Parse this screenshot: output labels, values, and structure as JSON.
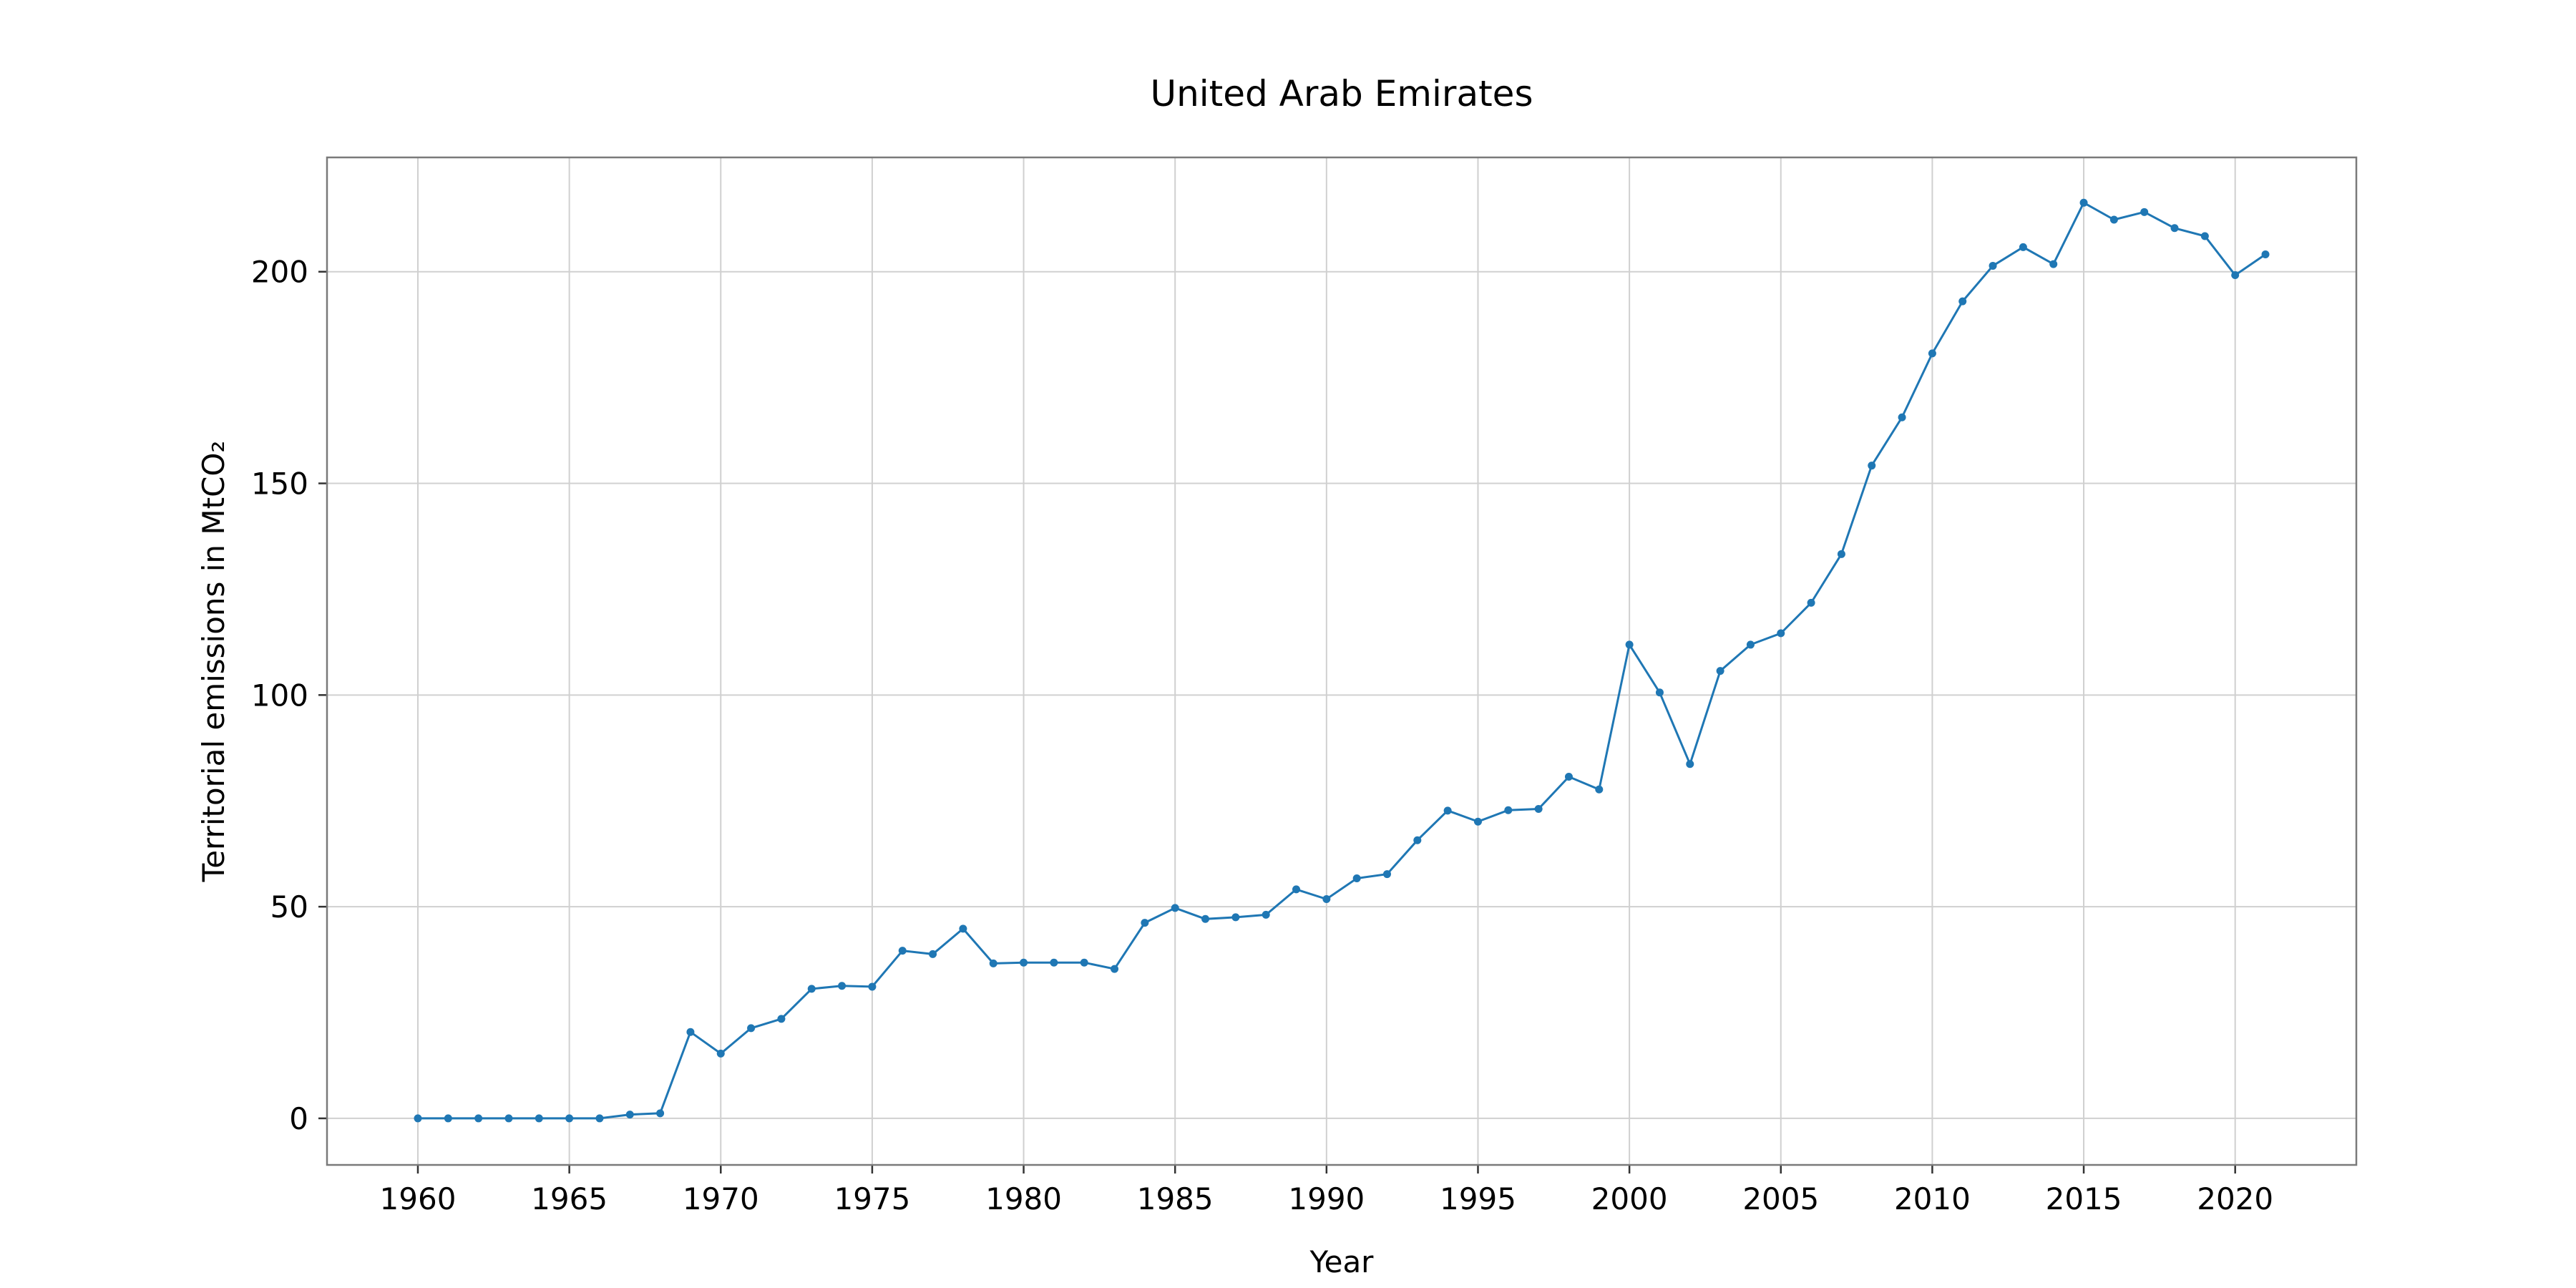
{
  "chart_data": {
    "type": "line",
    "title": "United Arab Emirates",
    "xlabel": "Year",
    "ylabel": "Territorial emissions in MtCO₂",
    "xlim": [
      1957,
      2024
    ],
    "ylim": [
      -11,
      227
    ],
    "xticks": [
      1960,
      1965,
      1970,
      1975,
      1980,
      1985,
      1990,
      1995,
      2000,
      2005,
      2010,
      2015,
      2020
    ],
    "yticks": [
      0,
      50,
      100,
      150,
      200
    ],
    "grid": true,
    "color": "#1f77b4",
    "x": [
      1960,
      1961,
      1962,
      1963,
      1964,
      1965,
      1966,
      1967,
      1968,
      1969,
      1970,
      1971,
      1972,
      1973,
      1974,
      1975,
      1976,
      1977,
      1978,
      1979,
      1980,
      1981,
      1982,
      1983,
      1984,
      1985,
      1986,
      1987,
      1988,
      1989,
      1990,
      1991,
      1992,
      1993,
      1994,
      1995,
      1996,
      1997,
      1998,
      1999,
      2000,
      2001,
      2002,
      2003,
      2004,
      2005,
      2006,
      2007,
      2008,
      2009,
      2010,
      2011,
      2012,
      2013,
      2014,
      2015,
      2016,
      2017,
      2018,
      2019,
      2020,
      2021
    ],
    "series": [
      {
        "values": [
          0.0,
          0.0,
          0.0,
          0.0,
          0.0,
          0.0,
          0.0,
          0.9,
          1.2,
          20.4,
          15.3,
          21.3,
          23.5,
          30.6,
          31.3,
          31.1,
          39.6,
          38.8,
          44.8,
          36.6,
          36.8,
          36.8,
          36.8,
          35.3,
          46.2,
          49.7,
          47.1,
          47.5,
          48.1,
          54.1,
          51.8,
          56.7,
          57.7,
          65.7,
          72.7,
          70.1,
          72.8,
          73.1,
          80.7,
          77.7,
          111.9,
          100.6,
          83.7,
          105.7,
          111.9,
          114.6,
          121.8,
          133.3,
          154.2,
          165.6,
          180.7,
          193.0,
          201.4,
          205.8,
          201.8,
          216.3,
          212.3,
          214.1,
          210.3,
          208.4,
          199.2,
          204.1
        ]
      }
    ]
  }
}
